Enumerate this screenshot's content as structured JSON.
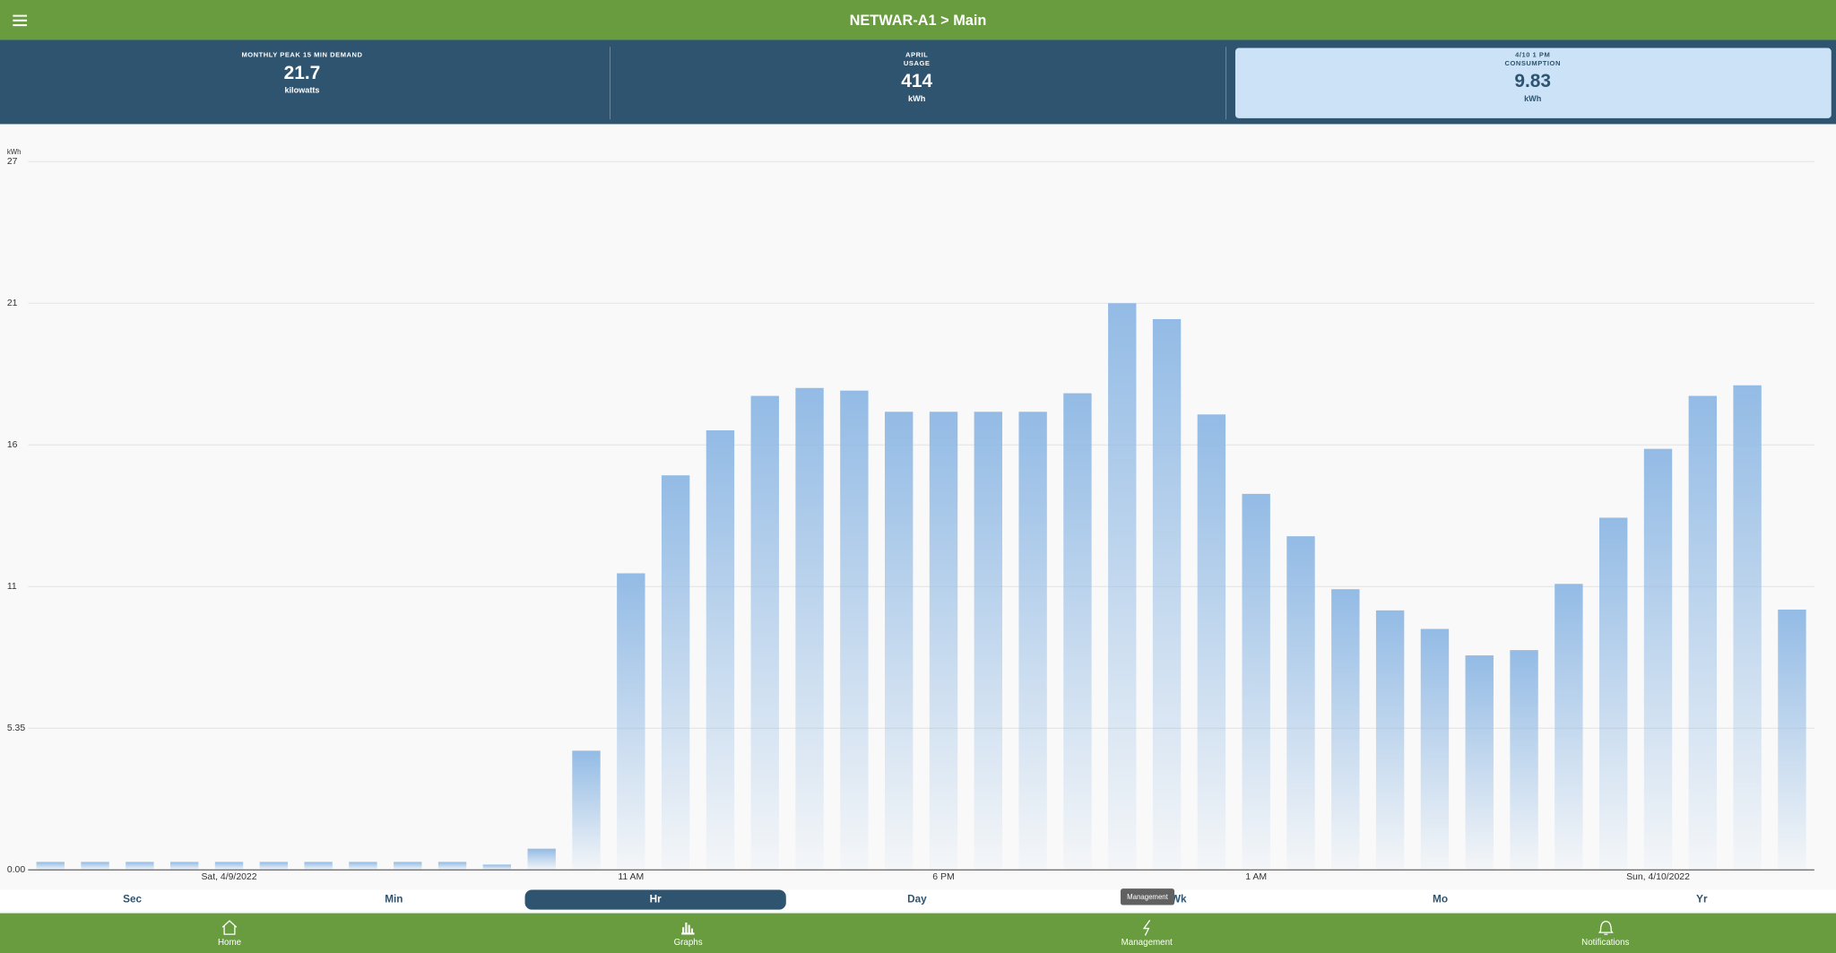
{
  "header": {
    "title": "NETWAR-A1 > Main"
  },
  "cards": [
    {
      "title": [
        "MONTHLY PEAK 15 MIN DEMAND"
      ],
      "value": 21.7,
      "unit": "kilowatts",
      "selected": false
    },
    {
      "title": [
        "APRIL",
        "USAGE"
      ],
      "value": 414,
      "unit": "kWh",
      "selected": false
    },
    {
      "title": [
        "4/10 1 PM",
        "CONSUMPTION"
      ],
      "value": 9.83,
      "unit": "kWh",
      "selected": true
    }
  ],
  "chart_data": {
    "type": "bar",
    "y_label": "kWh",
    "categories": [
      null,
      null,
      null,
      null,
      "Sat, 4/9/2022",
      null,
      null,
      null,
      null,
      null,
      null,
      null,
      null,
      "11 AM",
      null,
      null,
      null,
      null,
      null,
      null,
      "6 PM",
      null,
      null,
      null,
      null,
      null,
      null,
      "1 AM",
      null,
      null,
      null,
      null,
      null,
      null,
      null,
      null,
      "Sun, 4/10/2022",
      null,
      null,
      null
    ],
    "values": [
      0.3,
      0.3,
      0.3,
      0.3,
      0.3,
      0.3,
      0.3,
      0.3,
      0.3,
      0.3,
      0.2,
      0.8,
      4.5,
      11.2,
      14.9,
      16.6,
      17.9,
      18.2,
      18.1,
      17.3,
      17.3,
      17.3,
      17.3,
      18.0,
      21.4,
      20.8,
      17.2,
      14.2,
      12.6,
      10.6,
      9.8,
      9.1,
      8.1,
      8.3,
      10.8,
      13.3,
      15.9,
      17.9,
      18.3,
      9.83
    ],
    "color": "#93bbe5",
    "ylim": [
      0,
      26.75
    ],
    "yticks": [
      {
        "value": 0,
        "label": "0.00"
      },
      5.35,
      {
        "value": 10.7,
        "label": "11"
      },
      {
        "value": 16.05,
        "label": "16"
      },
      {
        "value": 21.4,
        "label": "21"
      },
      {
        "value": 26.75,
        "label": "27"
      }
    ],
    "grid": true
  },
  "range_tabs": {
    "options": [
      "Sec",
      "Min",
      "Hr",
      "Day",
      "Wk",
      "Mo",
      "Yr"
    ],
    "selected": 2
  },
  "tooltip": "Management",
  "nav": [
    "Home",
    "Graphs",
    "Management",
    "Notifications"
  ]
}
